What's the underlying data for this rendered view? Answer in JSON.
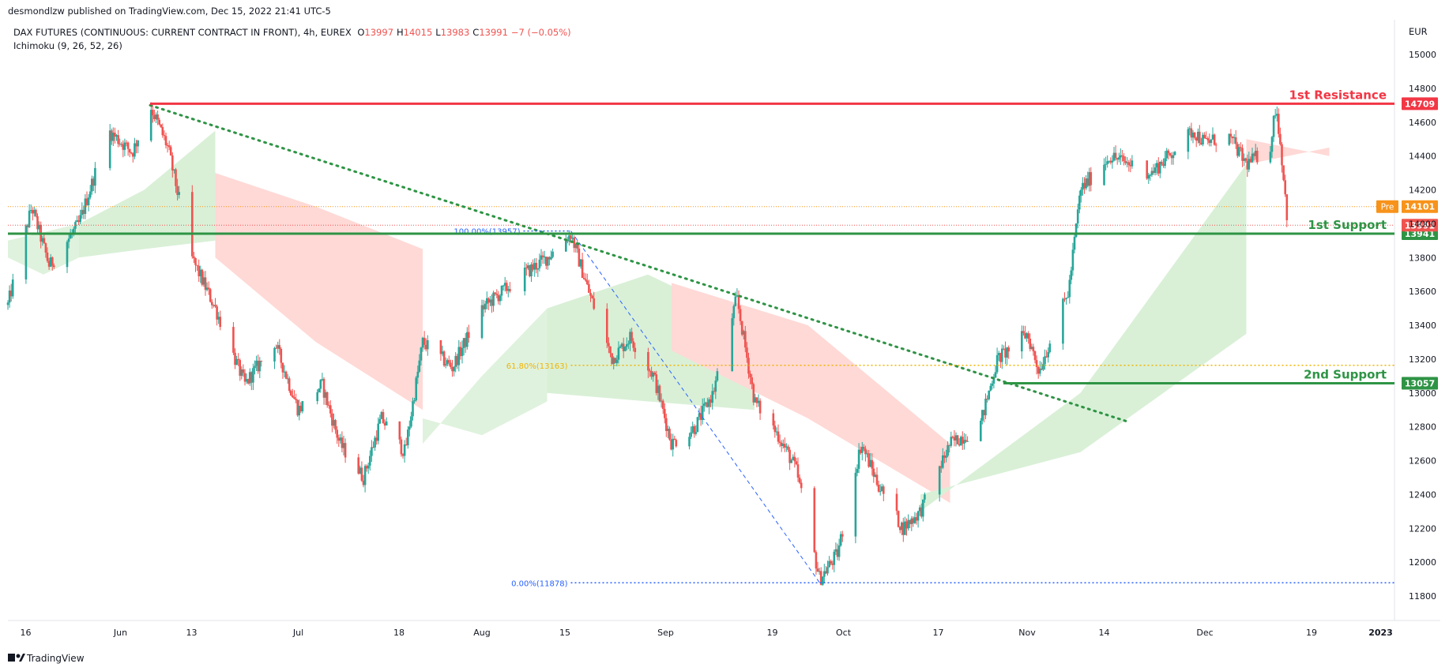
{
  "header": {
    "published_by": "desmondlzw published on TradingView.com, Dec 15, 2022 21:41 UTC-5"
  },
  "footer": {
    "brand": "TradingView"
  },
  "legend": {
    "symbol": "DAX FUTURES (CONTINUOUS: CURRENT CONTRACT IN FRONT), 4h, EUREX",
    "ohlc": [
      {
        "key": "O",
        "value": "13997"
      },
      {
        "key": "H",
        "value": "14015"
      },
      {
        "key": "L",
        "value": "13983"
      },
      {
        "key": "C",
        "value": "13991"
      }
    ],
    "change": "−7 (−0.05%)",
    "indicator": "Ichimoku (9, 26, 52, 26)"
  },
  "colors": {
    "up": "#26a69a",
    "down": "#ef5350",
    "resistance": "#f23645",
    "support": "#2e9445",
    "trendline": "#2e9445",
    "fib": "#2962ff",
    "fib_618": "#f0b400",
    "cloud_bull": "#d9f0d7",
    "cloud_bear": "#ffd9d6",
    "pre": "#f7931a"
  },
  "chart_data": {
    "type": "candlestick",
    "timeframe": "4h",
    "currency": "EUR",
    "y_axis": {
      "range": [
        11700,
        15150
      ],
      "ticks": [
        11800,
        12000,
        12200,
        12400,
        12600,
        12800,
        13000,
        13200,
        13400,
        13600,
        13800,
        14000,
        14200,
        14400,
        14600,
        14800,
        15000
      ]
    },
    "x_axis": {
      "labels": [
        "16",
        "Jun",
        "13",
        "Jul",
        "18",
        "Aug",
        "15",
        "Sep",
        "19",
        "Oct",
        "17",
        "Nov",
        "14",
        "Dec",
        "19",
        "2023"
      ],
      "range": [
        "2022-05-13",
        "2023-01-02"
      ]
    },
    "path": [
      [
        "2022-05-13",
        13520
      ],
      [
        "2022-05-17",
        14100
      ],
      [
        "2022-05-20",
        13750
      ],
      [
        "2022-05-25",
        14000
      ],
      [
        "2022-05-30",
        14550
      ],
      [
        "2022-06-03",
        14420
      ],
      [
        "2022-06-06",
        14700
      ],
      [
        "2022-06-09",
        14450
      ],
      [
        "2022-06-13",
        13800
      ],
      [
        "2022-06-17",
        13500
      ],
      [
        "2022-06-22",
        13050
      ],
      [
        "2022-06-27",
        13300
      ],
      [
        "2022-07-01",
        12900
      ],
      [
        "2022-07-05",
        13050
      ],
      [
        "2022-07-08",
        12700
      ],
      [
        "2022-07-12",
        12500
      ],
      [
        "2022-07-15",
        12850
      ],
      [
        "2022-07-19",
        12650
      ],
      [
        "2022-07-22",
        13300
      ],
      [
        "2022-07-27",
        13150
      ],
      [
        "2022-08-01",
        13500
      ],
      [
        "2022-08-08",
        13700
      ],
      [
        "2022-08-12",
        13800
      ],
      [
        "2022-08-16",
        13940
      ],
      [
        "2022-08-19",
        13600
      ],
      [
        "2022-08-23",
        13200
      ],
      [
        "2022-08-26",
        13330
      ],
      [
        "2022-08-30",
        13100
      ],
      [
        "2022-09-02",
        12700
      ],
      [
        "2022-09-06",
        12800
      ],
      [
        "2022-09-09",
        13000
      ],
      [
        "2022-09-13",
        13560
      ],
      [
        "2022-09-16",
        12950
      ],
      [
        "2022-09-20",
        12750
      ],
      [
        "2022-09-23",
        12550
      ],
      [
        "2022-09-27",
        11900
      ],
      [
        "2022-09-30",
        12050
      ],
      [
        "2022-10-04",
        12700
      ],
      [
        "2022-10-07",
        12450
      ],
      [
        "2022-10-11",
        12200
      ],
      [
        "2022-10-14",
        12300
      ],
      [
        "2022-10-19",
        12700
      ],
      [
        "2022-10-24",
        12800
      ],
      [
        "2022-10-27",
        13200
      ],
      [
        "2022-11-01",
        13350
      ],
      [
        "2022-11-03",
        13130
      ],
      [
        "2022-11-08",
        13600
      ],
      [
        "2022-11-10",
        14200
      ],
      [
        "2022-11-15",
        14400
      ],
      [
        "2022-11-22",
        14300
      ],
      [
        "2022-11-29",
        14550
      ],
      [
        "2022-12-01",
        14480
      ],
      [
        "2022-12-05",
        14520
      ],
      [
        "2022-12-08",
        14350
      ],
      [
        "2022-12-12",
        14450
      ],
      [
        "2022-12-13",
        14709
      ],
      [
        "2022-12-14",
        14380
      ],
      [
        "2022-12-15",
        13991
      ]
    ],
    "ichimoku": {
      "settings": [
        9,
        26,
        52,
        26
      ],
      "cloud_segments": [
        {
          "from": "2022-05-13",
          "to": "2022-05-25",
          "a": [
            13900,
            13950,
            14000
          ],
          "b": [
            13800,
            13700,
            13800
          ],
          "bias": "mixed"
        },
        {
          "from": "2022-05-25",
          "to": "2022-06-17",
          "a": [
            14000,
            14200,
            14550
          ],
          "b": [
            13800,
            13850,
            13900
          ],
          "bias": "bull"
        },
        {
          "from": "2022-06-17",
          "to": "2022-07-22",
          "a": [
            13800,
            13300,
            12900
          ],
          "b": [
            14300,
            14100,
            13850
          ],
          "bias": "bear"
        },
        {
          "from": "2022-07-22",
          "to": "2022-08-12",
          "a": [
            12700,
            13100,
            13500
          ],
          "b": [
            12850,
            12750,
            12950
          ],
          "bias": "mixed"
        },
        {
          "from": "2022-08-12",
          "to": "2022-09-16",
          "a": [
            13500,
            13700,
            13400
          ],
          "b": [
            13000,
            12950,
            12900
          ],
          "bias": "bull"
        },
        {
          "from": "2022-09-02",
          "to": "2022-10-19",
          "a": [
            13250,
            12850,
            12350
          ],
          "b": [
            13650,
            13400,
            12700
          ],
          "bias": "bear"
        },
        {
          "from": "2022-10-14",
          "to": "2022-12-08",
          "a": [
            12300,
            13000,
            14350
          ],
          "b": [
            12400,
            12650,
            13350
          ],
          "bias": "bull"
        },
        {
          "from": "2022-12-08",
          "to": "2022-12-22",
          "a": [
            14500,
            14450,
            14400
          ],
          "b": [
            14350,
            14400,
            14450
          ],
          "bias": "bear"
        }
      ]
    },
    "levels": [
      {
        "label": "1st Resistance",
        "price": 14709,
        "price_label": "14709",
        "color": "#f23645",
        "from": "2022-06-06"
      },
      {
        "label": "1st Support",
        "price": 13941,
        "price_label": "13941",
        "color": "#2e9445",
        "from": "2022-05-13"
      },
      {
        "label": "2nd Support",
        "price": 13057,
        "price_label": "13057",
        "color": "#2e9445",
        "from": "2022-10-28"
      }
    ],
    "trendline": {
      "from": [
        "2022-06-06",
        14700
      ],
      "to": [
        "2022-11-18",
        12830
      ]
    },
    "fibonacci": [
      {
        "label": "100.00%(13957)",
        "price": 13957,
        "from": "2022-08-08",
        "to": "2022-08-16"
      },
      {
        "label": "61.80%(13163)",
        "price": 13163,
        "from": "2022-08-16",
        "to": "2023-01-02"
      },
      {
        "label": "0.00%(11878)",
        "price": 11878,
        "from": "2022-08-16",
        "to": "2023-01-02"
      }
    ],
    "fib_diagonal": {
      "from": [
        "2022-08-16",
        13957
      ],
      "to": [
        "2022-09-27",
        11878
      ]
    },
    "pre_market": {
      "label": "Pre",
      "price": 14101,
      "price_label": "14101"
    },
    "last_price": {
      "price": 13991,
      "price_label": "13991"
    }
  }
}
